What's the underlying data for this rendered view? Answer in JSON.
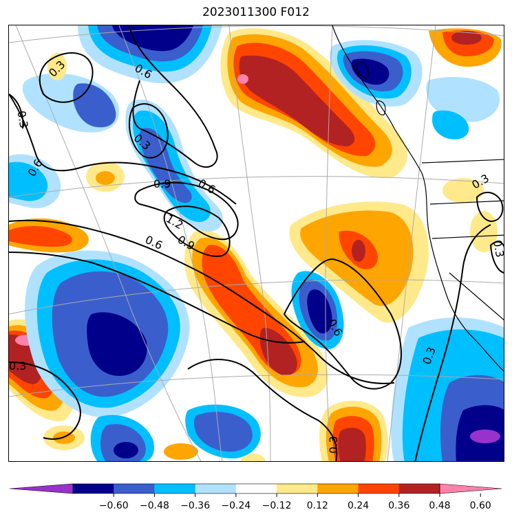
{
  "title": "2023011300 F012",
  "colorbar": {
    "colors": [
      "#9932cc",
      "#00008b",
      "#3a5fcd",
      "#00bfff",
      "#b0e2ff",
      "#ffffff",
      "#ffe98a",
      "#ffa500",
      "#ff4500",
      "#b22222",
      "#ff82ab"
    ],
    "tick_labels": [
      "−0.60",
      "−0.48",
      "−0.36",
      "−0.24",
      "−0.12",
      "0.12",
      "0.24",
      "0.36",
      "0.48",
      "0.60"
    ]
  },
  "contours": {
    "line_color": "#000000",
    "labels": [
      "0.3",
      "0.6",
      "0.3",
      "0.6",
      "0.3",
      "0.9",
      "0.6",
      "1.2",
      "0.9",
      "0.6",
      "0.3",
      "0.3",
      "0.6",
      "0.3",
      "0.3",
      "0.3"
    ]
  },
  "map": {
    "graticule_color": "#aaaaaa",
    "coastline_color": "#000000",
    "land_fill": "#ffffff"
  }
}
